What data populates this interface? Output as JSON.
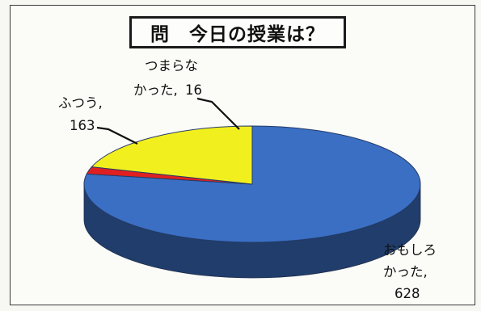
{
  "chart_data": {
    "type": "pie",
    "title": "問　今日の授業は？",
    "slices": [
      {
        "name_lines": [
          "おもしろ",
          "かった,"
        ],
        "value": 628,
        "value_text": "628",
        "color": "#3a6fc4"
      },
      {
        "name_lines": [
          "つまらな",
          "かった,"
        ],
        "value": 16,
        "value_text": "16",
        "color": "#e02020"
      },
      {
        "name_lines": [
          "ふつう,"
        ],
        "value": 163,
        "value_text": "163",
        "color": "#f2ef1e"
      }
    ],
    "legend": "none",
    "three_d": true
  }
}
